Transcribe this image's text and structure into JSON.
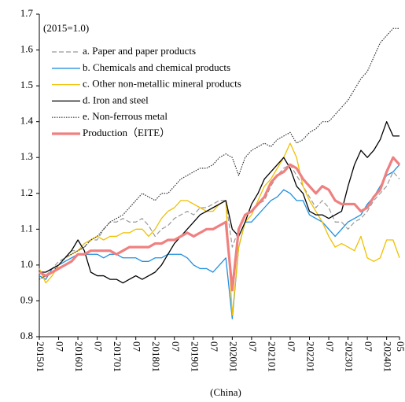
{
  "chart_data": {
    "type": "line",
    "annotation": "(2015=1.0)",
    "x_label": "(China)",
    "categories": [
      "201501",
      null,
      null,
      "07",
      null,
      null,
      "201601",
      null,
      null,
      "07",
      null,
      null,
      "201701",
      null,
      null,
      "07",
      null,
      null,
      "201801",
      null,
      null,
      "07",
      null,
      null,
      "201901",
      null,
      null,
      "07",
      null,
      null,
      "202001",
      null,
      null,
      "07",
      null,
      null,
      "202101",
      null,
      null,
      "07",
      null,
      null,
      "202201",
      null,
      null,
      "07",
      null,
      null,
      "202301",
      null,
      null,
      "07",
      null,
      null,
      "202401",
      null,
      "05"
    ],
    "ylim": [
      0.8,
      1.7
    ],
    "yticks": [
      0.8,
      0.9,
      {
        "value": 1,
        "label": "1.0"
      },
      1.1,
      1.2,
      1.3,
      1.4,
      1.5,
      1.6,
      1.7
    ],
    "legend": "upper left",
    "series": [
      {
        "name": "a. Paper and paper products",
        "color": "#999999",
        "line_style": "dashed",
        "values": [
          0.98,
          0.97,
          0.99,
          1.01,
          1.02,
          1.04,
          1.04,
          1.05,
          1.07,
          1.07,
          1.1,
          1.12,
          1.12,
          1.13,
          1.12,
          1.12,
          1.13,
          1.11,
          1.08,
          1.1,
          1.11,
          1.13,
          1.14,
          1.15,
          1.14,
          1.16,
          1.16,
          1.17,
          1.18,
          1.18,
          1.05,
          1.1,
          1.14,
          1.15,
          1.17,
          1.18,
          1.22,
          1.25,
          1.27,
          1.28,
          1.25,
          1.22,
          1.19,
          1.16,
          1.18,
          1.16,
          1.12,
          1.12,
          1.1,
          1.12,
          1.13,
          1.15,
          1.18,
          1.2,
          1.22,
          1.26,
          1.24
        ]
      },
      {
        "name": "b. Chemicals and chemical products",
        "color": "#1f8fe0",
        "line_style": "solid",
        "values": [
          0.97,
          0.96,
          0.99,
          1.0,
          1.01,
          1.02,
          1.03,
          1.03,
          1.03,
          1.03,
          1.02,
          1.03,
          1.03,
          1.02,
          1.02,
          1.02,
          1.01,
          1.01,
          1.02,
          1.02,
          1.03,
          1.03,
          1.03,
          1.02,
          1.0,
          0.99,
          0.99,
          0.98,
          1.0,
          1.02,
          0.85,
          1.05,
          1.12,
          1.12,
          1.14,
          1.16,
          1.18,
          1.19,
          1.21,
          1.2,
          1.18,
          1.18,
          1.14,
          1.13,
          1.12,
          1.1,
          1.08,
          1.1,
          1.12,
          1.13,
          1.14,
          1.17,
          1.19,
          1.22,
          1.25,
          1.26,
          1.28
        ]
      },
      {
        "name": "c. Other non-metallic mineral products",
        "color": "#f0c000",
        "line_style": "solid",
        "values": [
          0.99,
          0.95,
          0.97,
          1.0,
          1.02,
          1.03,
          1.04,
          1.06,
          1.07,
          1.08,
          1.07,
          1.08,
          1.08,
          1.09,
          1.09,
          1.1,
          1.1,
          1.08,
          1.1,
          1.13,
          1.15,
          1.16,
          1.18,
          1.18,
          1.17,
          1.16,
          1.15,
          1.15,
          1.17,
          1.18,
          0.86,
          1.05,
          1.12,
          1.14,
          1.18,
          1.22,
          1.24,
          1.27,
          1.3,
          1.34,
          1.3,
          1.22,
          1.18,
          1.15,
          1.12,
          1.08,
          1.05,
          1.06,
          1.05,
          1.04,
          1.08,
          1.02,
          1.01,
          1.02,
          1.07,
          1.07,
          1.02
        ]
      },
      {
        "name": "d. Iron and steel",
        "color": "#000000",
        "line_style": "solid",
        "values": [
          0.98,
          0.98,
          0.99,
          1.0,
          1.02,
          1.04,
          1.07,
          1.04,
          0.98,
          0.97,
          0.97,
          0.96,
          0.96,
          0.95,
          0.96,
          0.97,
          0.96,
          0.97,
          0.98,
          1.0,
          1.03,
          1.06,
          1.08,
          1.1,
          1.12,
          1.14,
          1.15,
          1.16,
          1.17,
          1.18,
          1.1,
          1.08,
          1.12,
          1.17,
          1.2,
          1.24,
          1.26,
          1.28,
          1.3,
          1.27,
          1.22,
          1.2,
          1.15,
          1.14,
          1.14,
          1.13,
          1.14,
          1.15,
          1.22,
          1.28,
          1.32,
          1.3,
          1.32,
          1.35,
          1.4,
          1.36,
          1.36
        ]
      },
      {
        "name": "e. Non-ferrous metal",
        "color": "#333333",
        "line_style": "dotted",
        "values": [
          0.96,
          0.97,
          0.98,
          1.0,
          1.02,
          1.03,
          1.04,
          1.05,
          1.07,
          1.08,
          1.1,
          1.12,
          1.13,
          1.14,
          1.16,
          1.18,
          1.2,
          1.19,
          1.18,
          1.2,
          1.2,
          1.22,
          1.24,
          1.25,
          1.26,
          1.27,
          1.27,
          1.28,
          1.3,
          1.31,
          1.3,
          1.25,
          1.3,
          1.32,
          1.33,
          1.34,
          1.33,
          1.35,
          1.36,
          1.37,
          1.34,
          1.35,
          1.37,
          1.38,
          1.4,
          1.4,
          1.42,
          1.44,
          1.46,
          1.49,
          1.52,
          1.54,
          1.58,
          1.62,
          1.64,
          1.66,
          1.66
        ]
      },
      {
        "name": "Production（EITE）",
        "color": "#f08080",
        "line_style": "thick",
        "values": [
          0.98,
          0.97,
          0.98,
          0.99,
          1.0,
          1.01,
          1.03,
          1.03,
          1.04,
          1.04,
          1.04,
          1.04,
          1.03,
          1.04,
          1.05,
          1.05,
          1.05,
          1.05,
          1.06,
          1.06,
          1.07,
          1.07,
          1.08,
          1.09,
          1.08,
          1.09,
          1.1,
          1.1,
          1.11,
          1.12,
          0.93,
          1.1,
          1.14,
          1.15,
          1.17,
          1.19,
          1.23,
          1.25,
          1.26,
          1.28,
          1.27,
          1.24,
          1.22,
          1.2,
          1.22,
          1.21,
          1.18,
          1.17,
          1.17,
          1.17,
          1.15,
          1.16,
          1.19,
          1.21,
          1.26,
          1.3,
          1.28
        ]
      }
    ]
  }
}
